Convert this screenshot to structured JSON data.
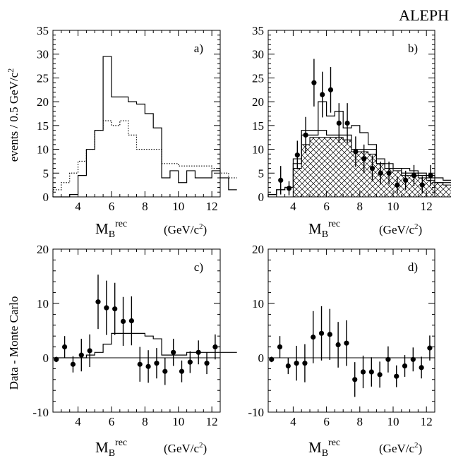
{
  "figure": {
    "experiment": "ALEPH",
    "x_label_main": "M",
    "x_label_sub": "B",
    "x_label_sup": "rec",
    "x_unit": "(GeV/c",
    "x_unit_sup": "2",
    "x_unit_close": ")",
    "y_label_top": "events / 0.5 GeV/c",
    "y_label_top_sup": "2",
    "y_label_bottom": "Data - Monte Carlo"
  },
  "chart_data": [
    {
      "type": "histogram",
      "panel": "a)",
      "xlim": [
        2.5,
        12.5
      ],
      "ylim": [
        0,
        35
      ],
      "xticks": [
        4,
        6,
        8,
        10,
        12
      ],
      "yticks": [
        0,
        5,
        10,
        15,
        20,
        25,
        30,
        35
      ],
      "bin_width": 0.5,
      "bin_edges_start": 2.5,
      "series": [
        {
          "style": "solid",
          "values": [
            0,
            0,
            0.5,
            4.5,
            10,
            14,
            29.5,
            21,
            21,
            20,
            19.5,
            17.5,
            14.5,
            4,
            5.5,
            3,
            5.5,
            4,
            4,
            5.5,
            4,
            1.5
          ]
        },
        {
          "style": "dotted",
          "values": [
            1.5,
            3,
            5,
            7.5,
            10,
            14,
            16,
            15,
            16,
            13,
            10,
            10,
            10,
            7,
            7,
            6.5,
            6.5,
            6.5,
            6.5,
            6,
            5,
            4
          ]
        }
      ]
    },
    {
      "type": "histogram",
      "panel": "b)",
      "xlim": [
        2.5,
        12.5
      ],
      "ylim": [
        0,
        35
      ],
      "xticks": [
        4,
        6,
        8,
        10,
        12
      ],
      "yticks": [
        0,
        5,
        10,
        15,
        20,
        25,
        30,
        35
      ],
      "bin_width": 0.5,
      "bin_edges_start": 2.5,
      "series": [
        {
          "style": "solid",
          "values": [
            0.5,
            1.5,
            2,
            8,
            14,
            14,
            20,
            17,
            18,
            14.5,
            15,
            13.5,
            11,
            8,
            7,
            6,
            6,
            5.5,
            5,
            4.5,
            4,
            3.5
          ]
        },
        {
          "style": "solid",
          "values": [
            0.5,
            1.5,
            2,
            7,
            13,
            13,
            14,
            13,
            13,
            13,
            10,
            10,
            10,
            7,
            6,
            6,
            5,
            5,
            4.5,
            4,
            3,
            3
          ]
        },
        {
          "style": "hatched",
          "values": [
            0,
            0,
            0,
            6,
            11,
            12.5,
            12.5,
            12.5,
            12.5,
            12,
            9.5,
            9.5,
            9,
            7,
            6,
            5.5,
            4.5,
            4.5,
            4,
            3.5,
            3,
            2.5
          ]
        }
      ],
      "points": {
        "x": [
          3.25,
          3.75,
          4.25,
          4.75,
          5.25,
          5.75,
          6.25,
          6.75,
          7.25,
          7.75,
          8.25,
          8.75,
          9.25,
          9.75,
          10.25,
          10.75,
          11.25,
          11.75,
          12.25
        ],
        "y": [
          3.5,
          1.8,
          8.8,
          13,
          24,
          21.5,
          22.5,
          15.5,
          15.5,
          9.5,
          8,
          6,
          5,
          5,
          2.5,
          3.5,
          4.5,
          2.5,
          4.5
        ],
        "err": [
          3,
          1.5,
          3,
          3.8,
          5,
          4.8,
          4.8,
          4.2,
          4.2,
          3.2,
          3,
          2.7,
          2.4,
          2.4,
          1.8,
          2,
          2.2,
          1.8,
          2.2
        ]
      }
    },
    {
      "type": "scatter",
      "panel": "c)",
      "xlim": [
        2.5,
        12.5
      ],
      "ylim": [
        -10,
        20
      ],
      "xticks": [
        4,
        6,
        8,
        10,
        12
      ],
      "yticks": [
        -10,
        0,
        10,
        20
      ],
      "bin_width": 0.5,
      "bin_edges_start": 2.5,
      "series": [
        {
          "style": "solid",
          "values": [
            0,
            0,
            0,
            0,
            0.5,
            1,
            2.5,
            4.5,
            4.5,
            4.5,
            4.5,
            4,
            3.5,
            0.5,
            0.5,
            0.5,
            1,
            1,
            1,
            1,
            1,
            1
          ]
        }
      ],
      "points": {
        "x": [
          2.7,
          3.2,
          3.7,
          4.2,
          4.7,
          5.2,
          5.7,
          6.2,
          6.7,
          7.2,
          7.7,
          8.2,
          8.7,
          9.2,
          9.7,
          10.2,
          10.7,
          11.2,
          11.7,
          12.2
        ],
        "y": [
          -0.3,
          2,
          -1.2,
          0.5,
          1.3,
          10.3,
          9.2,
          9,
          6.7,
          6.8,
          -1.2,
          -1.6,
          -1,
          -2.5,
          1,
          -2.5,
          -0.8,
          1,
          -1,
          2
        ],
        "err": [
          0.5,
          2,
          1.5,
          3,
          3,
          5,
          5,
          4.8,
          4.5,
          4.5,
          3.2,
          3,
          2.8,
          2.5,
          2.5,
          2,
          2,
          2.2,
          2,
          2.3
        ]
      }
    },
    {
      "type": "scatter",
      "panel": "d)",
      "xlim": [
        2.5,
        12.5
      ],
      "ylim": [
        -10,
        20
      ],
      "xticks": [
        4,
        6,
        8,
        10,
        12
      ],
      "yticks": [
        -10,
        0,
        10,
        20
      ],
      "points": {
        "x": [
          2.7,
          3.2,
          3.7,
          4.2,
          4.7,
          5.2,
          5.7,
          6.2,
          6.7,
          7.2,
          7.7,
          8.2,
          8.7,
          9.2,
          9.7,
          10.2,
          10.7,
          11.2,
          11.7,
          12.2
        ],
        "y": [
          -0.3,
          2,
          -1.5,
          -1,
          -1,
          3.8,
          4.5,
          4.3,
          2.4,
          2.7,
          -4,
          -2.6,
          -2.6,
          -3.1,
          -0.3,
          -3.4,
          -1.5,
          -0.3,
          -1.8,
          1.8
        ],
        "err": [
          0.5,
          2,
          1.5,
          3.2,
          3.5,
          4.8,
          5,
          4.7,
          4.2,
          4.2,
          3.2,
          3,
          2.7,
          2.4,
          2.4,
          2,
          2,
          2.2,
          2,
          2.3
        ]
      }
    }
  ]
}
